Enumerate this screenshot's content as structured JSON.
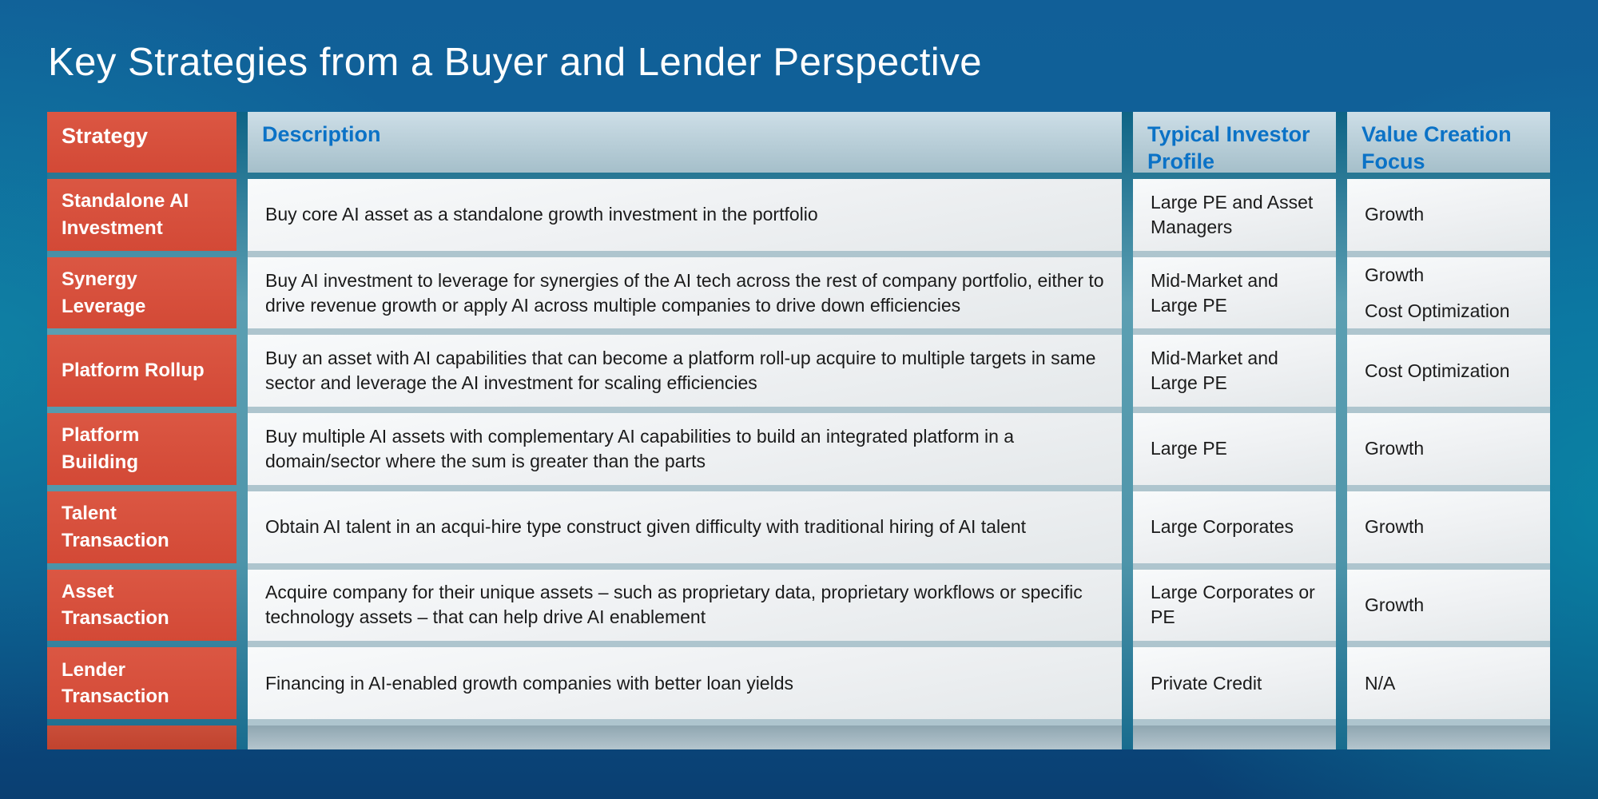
{
  "title": "Key Strategies from a Buyer and Lender Perspective",
  "table": {
    "columns": [
      "Strategy",
      "Description",
      "Typical Investor Profile",
      "Value Creation Focus"
    ],
    "rows": [
      {
        "strategy": "Standalone AI Investment",
        "description": "Buy core AI asset as a standalone growth investment in the portfolio",
        "investor_profile": "Large PE and Asset Managers",
        "value_focus": [
          "Growth"
        ]
      },
      {
        "strategy": "Synergy Leverage",
        "description": "Buy AI investment to leverage for synergies of the AI tech across the rest of company portfolio, either to drive revenue growth or apply AI across multiple companies to drive down efficiencies",
        "investor_profile": "Mid-Market and Large PE",
        "value_focus": [
          "Growth",
          "Cost Optimization"
        ]
      },
      {
        "strategy": "Platform Rollup",
        "description": "Buy an asset with AI capabilities that can become a platform roll-up acquire to multiple targets in same sector and leverage the AI investment for scaling efficiencies",
        "investor_profile": "Mid-Market and Large PE",
        "value_focus": [
          "Cost Optimization"
        ]
      },
      {
        "strategy": "Platform Building",
        "description": "Buy multiple AI assets with complementary AI capabilities to build an integrated platform in a domain/sector where the sum is greater than the parts",
        "investor_profile": "Large PE",
        "value_focus": [
          "Growth"
        ]
      },
      {
        "strategy": "Talent Transaction",
        "description": "Obtain AI talent in an acqui-hire type construct given difficulty with traditional hiring of AI talent",
        "investor_profile": "Large Corporates",
        "value_focus": [
          "Growth"
        ]
      },
      {
        "strategy": "Asset Transaction",
        "description": "Acquire company for their unique assets – such as proprietary data, proprietary workflows or specific technology assets – that can help drive AI enablement",
        "investor_profile": "Large Corporates or PE",
        "value_focus": [
          "Growth"
        ]
      },
      {
        "strategy": "Lender Transaction",
        "description": "Financing in AI-enabled growth companies with better loan yields",
        "investor_profile": "Private Credit",
        "value_focus": [
          "N/A"
        ]
      }
    ]
  },
  "colors": {
    "title_text": "#FFFFFF",
    "strategy_cell_red": "#D64C38",
    "strategy_footer_red": "#C4462F",
    "header_cell_blue_gray": "#BDD3DC",
    "header_text_blue": "#0B72C6",
    "body_cell_gray": "#EFF1F3",
    "body_text": "#1B1B1B",
    "row_separator": "#AEC5CE",
    "column_separator_teal": "#2F7F99",
    "background_blue": "#0E5F99",
    "background_teal": "#0D93AC",
    "background_navy": "#0A3F72"
  }
}
